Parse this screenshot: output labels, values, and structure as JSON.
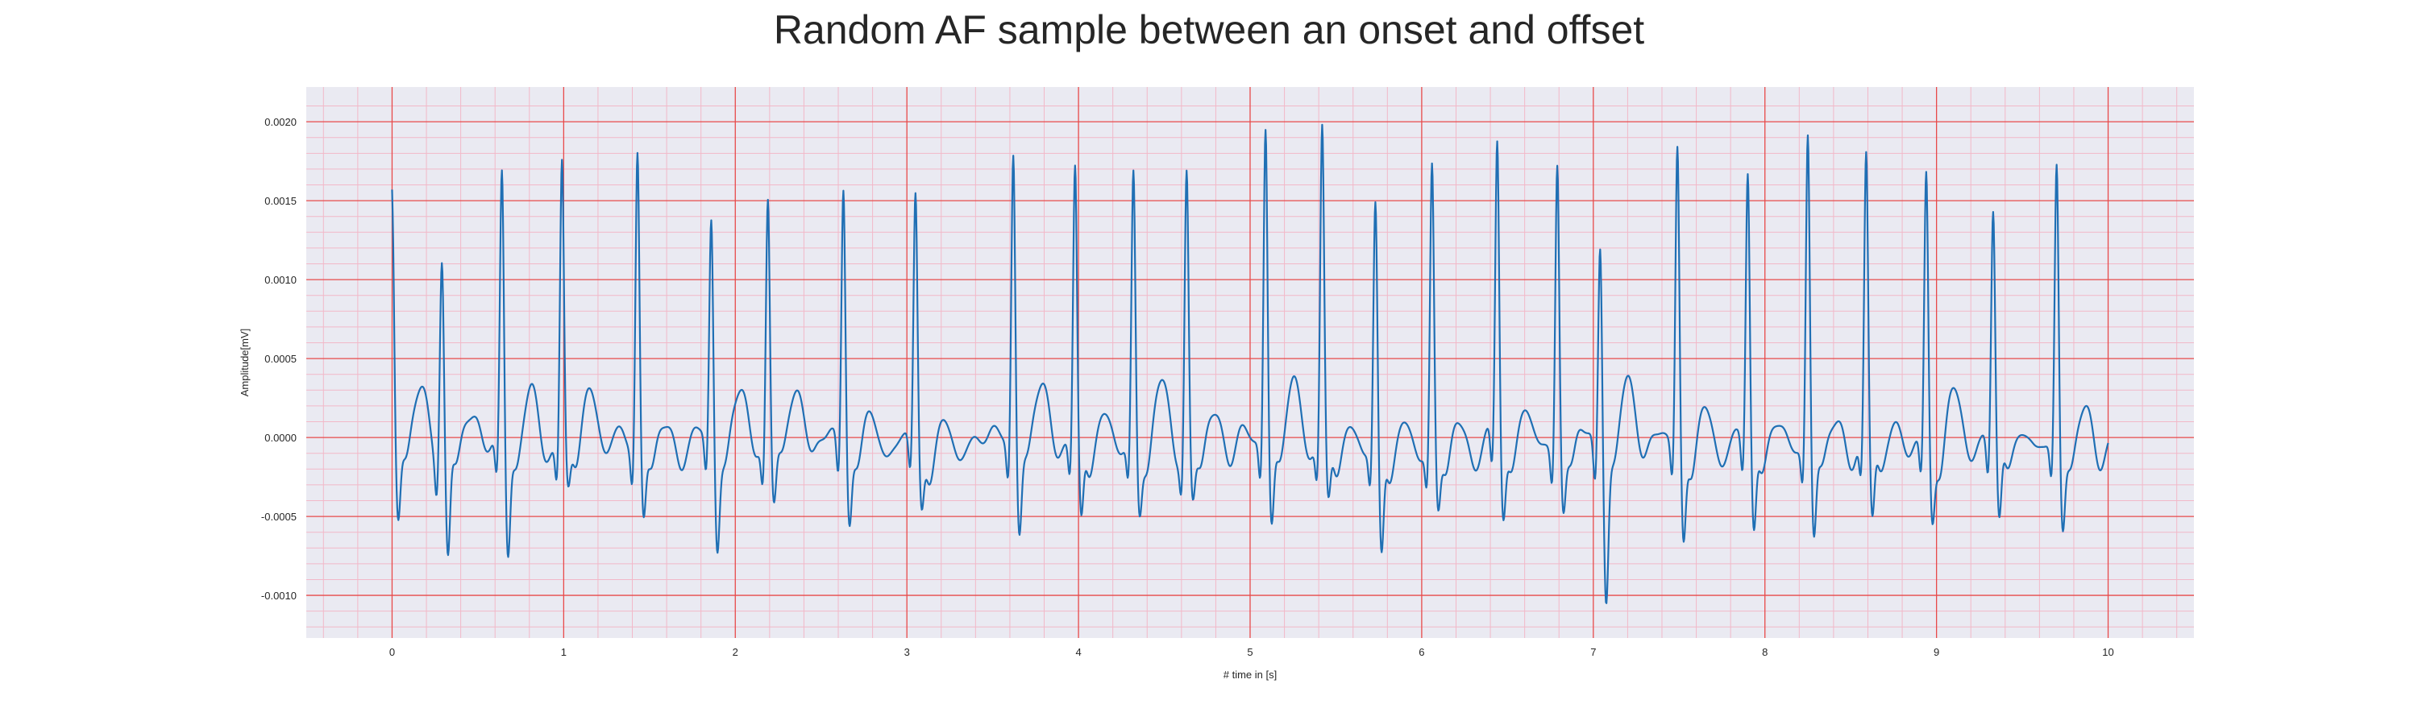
{
  "chart_data": {
    "type": "line",
    "title": "Random AF sample between an onset and offset",
    "xlabel": "# time in [s]",
    "ylabel": "Amplitude[mV]",
    "xlim": [
      -0.5,
      10.5
    ],
    "ylim": [
      -0.00127,
      0.00222
    ],
    "x_ticks": [
      0,
      1,
      2,
      3,
      4,
      5,
      6,
      7,
      8,
      9,
      10
    ],
    "y_ticks": [
      -0.001,
      -0.0005,
      0.0,
      0.0005,
      0.001,
      0.0015,
      0.002
    ],
    "y_tick_labels": [
      "-0.0010",
      "-0.0005",
      "0.0000",
      "0.0005",
      "0.0010",
      "0.0015",
      "0.0020"
    ],
    "grid": true,
    "colors": {
      "background": "#eaeaf2",
      "major_grid": "#e84a4a",
      "minor_grid": "#f2b8c8",
      "line": "#1f6fb4"
    },
    "sampling_rate_hz": 300,
    "r_peaks": [
      {
        "t": 0.0,
        "amp": 0.00157
      },
      {
        "t": 0.29,
        "amp": 0.00122
      },
      {
        "t": 0.64,
        "amp": 0.00177
      },
      {
        "t": 0.99,
        "amp": 0.00181
      },
      {
        "t": 1.43,
        "amp": 0.00189
      },
      {
        "t": 1.86,
        "amp": 0.00147
      },
      {
        "t": 2.19,
        "amp": 0.00163
      },
      {
        "t": 2.63,
        "amp": 0.0017
      },
      {
        "t": 3.05,
        "amp": 0.00158
      },
      {
        "t": 3.62,
        "amp": 0.00191
      },
      {
        "t": 3.98,
        "amp": 0.00175
      },
      {
        "t": 4.32,
        "amp": 0.00174
      },
      {
        "t": 4.63,
        "amp": 0.00175
      },
      {
        "t": 5.09,
        "amp": 0.00206
      },
      {
        "t": 5.42,
        "amp": 0.00201
      },
      {
        "t": 5.73,
        "amp": 0.00156
      },
      {
        "t": 6.06,
        "amp": 0.00181
      },
      {
        "t": 6.44,
        "amp": 0.00194
      },
      {
        "t": 6.79,
        "amp": 0.00184
      },
      {
        "t": 7.04,
        "amp": 0.00143
      },
      {
        "t": 7.49,
        "amp": 0.00192
      },
      {
        "t": 7.9,
        "amp": 0.00174
      },
      {
        "t": 8.25,
        "amp": 0.00201
      },
      {
        "t": 8.59,
        "amp": 0.00184
      },
      {
        "t": 8.94,
        "amp": 0.00174
      },
      {
        "t": 9.33,
        "amp": 0.00151
      },
      {
        "t": 9.7,
        "amp": 0.0018
      }
    ],
    "s_troughs": [
      -0.00072,
      -0.00096,
      -0.0009,
      -0.00053,
      -0.00068,
      -0.00083,
      -0.00058,
      -0.00068,
      -0.00063,
      -0.00075,
      -0.00073,
      -0.00063,
      -0.00058,
      -0.00073,
      -0.00062,
      -0.00092,
      -0.00063,
      -0.00068,
      -0.00062,
      -0.00111,
      -0.00082,
      -0.00078,
      -0.00078,
      -0.00072,
      -0.00068,
      -0.00072,
      -0.00073
    ]
  }
}
